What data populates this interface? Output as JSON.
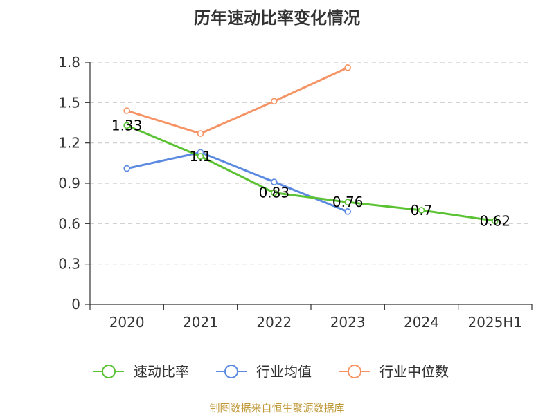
{
  "chart_data": {
    "type": "line",
    "title": "历年速动比率变化情况",
    "categories": [
      "2020",
      "2021",
      "2022",
      "2023",
      "2024",
      "2025H1"
    ],
    "ylim": [
      0,
      1.8
    ],
    "yticks": [
      "0",
      "0.3",
      "0.6",
      "0.9",
      "1.2",
      "1.5",
      "1.8"
    ],
    "grid": true,
    "legend_position": "bottom",
    "series": [
      {
        "name": "速动比率",
        "color": "#5bc234",
        "values": [
          1.33,
          1.1,
          0.83,
          0.76,
          0.7,
          0.62
        ],
        "labels": [
          "1.33",
          "1.1",
          "0.83",
          "0.76",
          "0.7",
          "0.62"
        ]
      },
      {
        "name": "行业均值",
        "color": "#5b8ae0",
        "values": [
          1.01,
          1.13,
          0.91,
          0.69,
          null,
          null
        ]
      },
      {
        "name": "行业中位数",
        "color": "#f59364",
        "values": [
          1.44,
          1.27,
          1.51,
          1.76,
          null,
          null
        ]
      }
    ]
  },
  "source": "制图数据来自恒生聚源数据库"
}
